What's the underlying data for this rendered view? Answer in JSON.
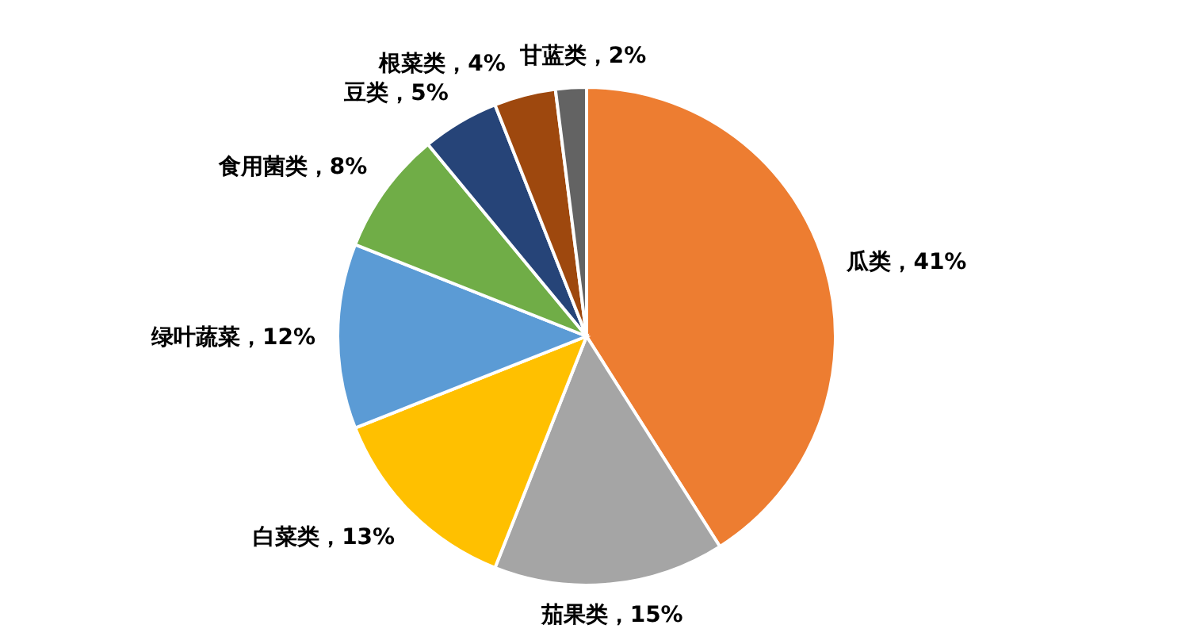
{
  "chart_data": {
    "type": "pie",
    "categories": [
      "瓜类",
      "茄果类",
      "白菜类",
      "绿叶蔬菜",
      "食用菌类",
      "豆类",
      "根菜类",
      "甘蓝类"
    ],
    "values": [
      41,
      15,
      13,
      12,
      8,
      5,
      4,
      2
    ],
    "colors": [
      "#ed7d31",
      "#a5a5a5",
      "#ffc000",
      "#5b9bd5",
      "#70ad47",
      "#264478",
      "#9e480e",
      "#636363"
    ],
    "value_labels": [
      "，41%",
      "，15%",
      "，13%",
      "，12%",
      "，8%",
      "，5%",
      "，4%",
      "，2%"
    ]
  }
}
